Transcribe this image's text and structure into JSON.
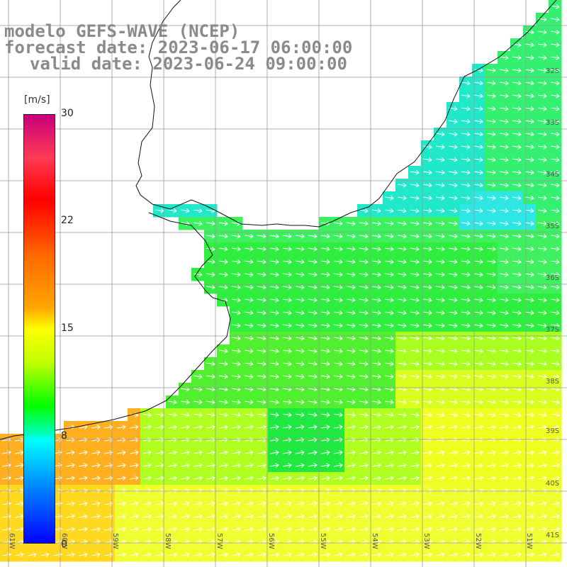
{
  "titles": {
    "line1": "modelo GEFS-WAVE (NCEP)",
    "line2": "forecast date: 2023-06-17 06:00:00",
    "line3": "valid date: 2023-06-24 09:00:00"
  },
  "colorbar": {
    "unit": "[m/s]",
    "ticks": [
      "30",
      "22",
      "15",
      "8",
      "0"
    ]
  },
  "lat_labels": [
    "32S",
    "33S",
    "34S",
    "35S",
    "36S",
    "37S",
    "38S",
    "39S",
    "40S",
    "41S"
  ],
  "lon_labels": [
    "61W",
    "60W",
    "59W",
    "58W",
    "57W",
    "56W",
    "55W",
    "54W",
    "53W",
    "52W",
    "51W"
  ],
  "colors": {
    "land": "#ffffff",
    "grid": "#999999",
    "coast": "#111111",
    "arrow": "#ffffff"
  }
}
